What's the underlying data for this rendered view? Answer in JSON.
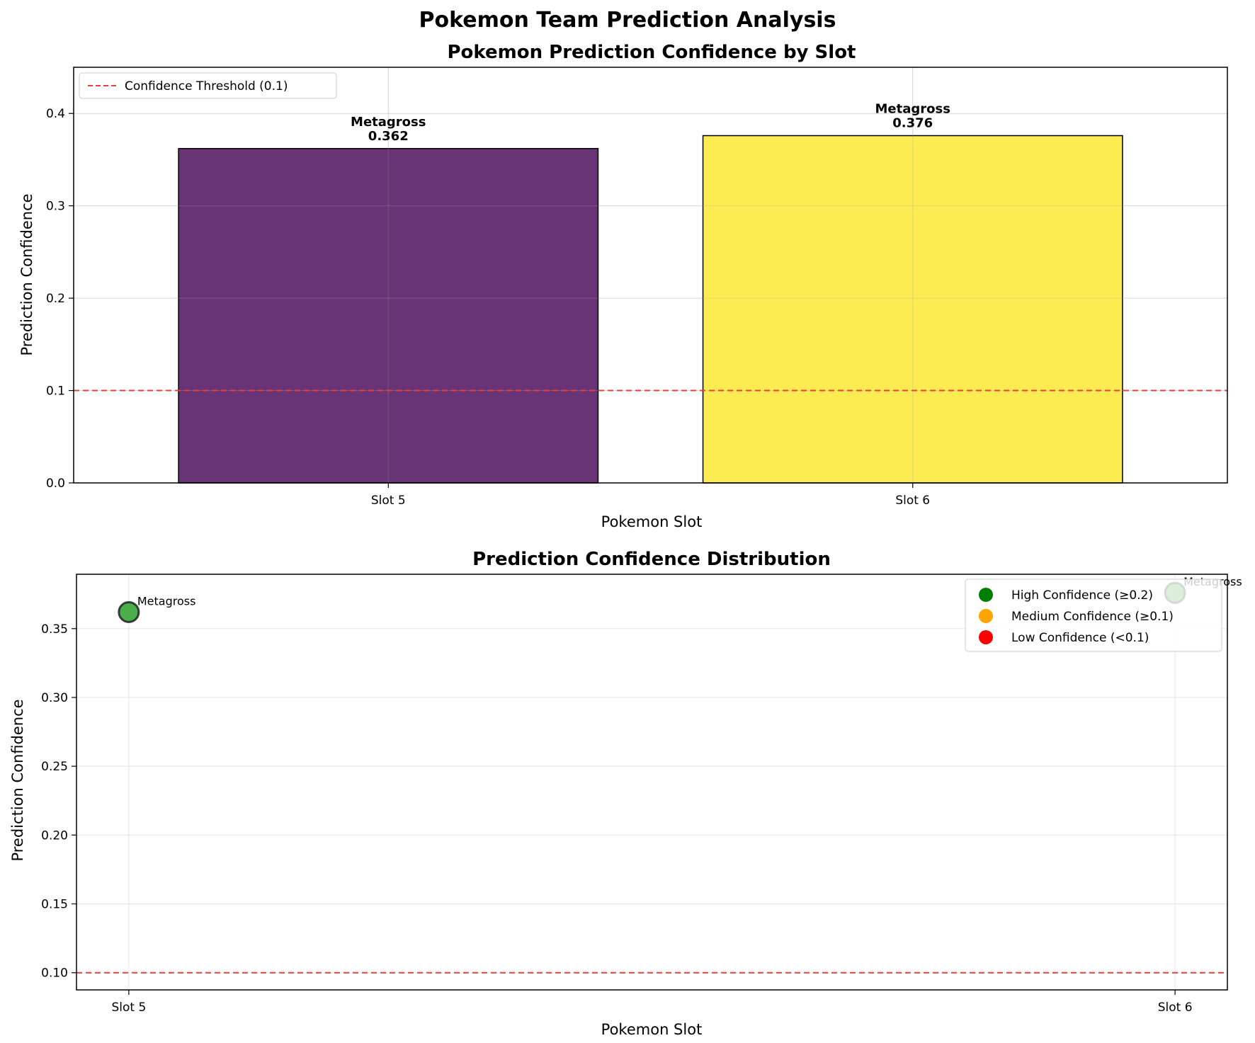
{
  "suptitle": "Pokemon Team Prediction Analysis",
  "chart_data": [
    {
      "type": "bar",
      "title": "Pokemon Prediction Confidence by Slot",
      "xlabel": "Pokemon Slot",
      "ylabel": "Prediction Confidence",
      "ylim": [
        0,
        0.45
      ],
      "yticks": [
        0.0,
        0.1,
        0.2,
        0.3,
        0.4
      ],
      "ytick_labels": [
        "0.0",
        "0.1",
        "0.2",
        "0.3",
        "0.4"
      ],
      "categories": [
        "Slot 5",
        "Slot 6"
      ],
      "values": [
        0.362,
        0.376
      ],
      "pokemon": [
        "Metagross",
        "Metagross"
      ],
      "value_labels": [
        "0.362",
        "0.376"
      ],
      "bar_colors": [
        "#440154",
        "#fde725"
      ],
      "threshold": {
        "value": 0.1,
        "label": "Confidence Threshold (0.1)",
        "color": "#e8413b"
      },
      "grid": true,
      "legend_position": "upper-left"
    },
    {
      "type": "scatter",
      "title": "Prediction Confidence Distribution",
      "xlabel": "Pokemon Slot",
      "ylabel": "Prediction Confidence",
      "ylim": [
        0.0875,
        0.3895
      ],
      "yticks": [
        0.1,
        0.15,
        0.2,
        0.25,
        0.3,
        0.35
      ],
      "ytick_labels": [
        "0.10",
        "0.15",
        "0.20",
        "0.25",
        "0.30",
        "0.35"
      ],
      "categories": [
        "Slot 5",
        "Slot 6"
      ],
      "values": [
        0.362,
        0.376
      ],
      "pokemon": [
        "Metagross",
        "Metagross"
      ],
      "point_color": "#2ca02c",
      "threshold": {
        "value": 0.1,
        "color": "#e8413b"
      },
      "grid": true,
      "legend_position": "upper-right",
      "legend": [
        {
          "label": "High Confidence (≥0.2)",
          "color": "#008000"
        },
        {
          "label": "Medium Confidence (≥0.1)",
          "color": "#ffa500"
        },
        {
          "label": "Low Confidence (<0.1)",
          "color": "#ff0000"
        }
      ]
    }
  ]
}
